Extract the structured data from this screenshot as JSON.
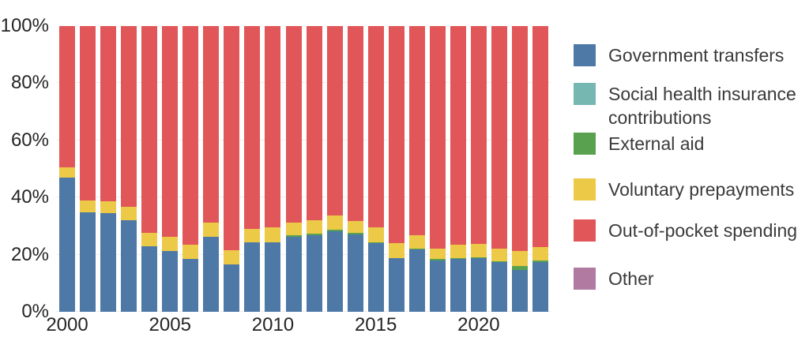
{
  "chart_data": {
    "type": "bar",
    "stacked": true,
    "normalized_percent": true,
    "title": "",
    "xlabel": "",
    "ylabel": "",
    "ylim": [
      0,
      100
    ],
    "grid": "faint dotted horizontal lines at 20% intervals",
    "legend_position": "right",
    "categories": [
      "2000",
      "2001",
      "2002",
      "2003",
      "2004",
      "2005",
      "2006",
      "2007",
      "2008",
      "2009",
      "2010",
      "2011",
      "2012",
      "2013",
      "2014",
      "2015",
      "2016",
      "2017",
      "2018",
      "2019",
      "2020",
      "2021",
      "2022",
      "2023"
    ],
    "series": [
      {
        "name": "Government transfers",
        "color": "#4e79a7",
        "values": [
          47.0,
          34.8,
          34.5,
          32.0,
          23.0,
          21.3,
          18.5,
          26.2,
          16.6,
          24.2,
          24.2,
          26.2,
          26.7,
          28.3,
          27.2,
          24.0,
          18.7,
          21.8,
          18.0,
          18.4,
          18.9,
          17.5,
          14.7,
          17.5
        ]
      },
      {
        "name": "Social health insurance contributions",
        "color": "#76b7b2",
        "values": [
          0,
          0,
          0,
          0,
          0,
          0,
          0,
          0,
          0,
          0,
          0,
          0,
          0,
          0,
          0,
          0,
          0,
          0,
          0,
          0,
          0,
          0,
          0,
          0
        ]
      },
      {
        "name": "External aid",
        "color": "#59a14f",
        "values": [
          0,
          0,
          0,
          0,
          0,
          0,
          0,
          0,
          0,
          0,
          0,
          0.7,
          0.6,
          0.5,
          0.3,
          0.4,
          0,
          0.4,
          0.5,
          0.3,
          0.3,
          0.3,
          1.2,
          0.4
        ]
      },
      {
        "name": "Voluntary prepayments",
        "color": "#edc948",
        "values": [
          3.5,
          4.1,
          4.1,
          4.7,
          4.6,
          5.0,
          5.0,
          5.1,
          5.0,
          4.8,
          5.3,
          4.4,
          4.7,
          4.8,
          4.3,
          5.1,
          5.3,
          4.5,
          3.6,
          4.8,
          4.5,
          4.3,
          5.3,
          4.7
        ]
      },
      {
        "name": "Out-of-pocket spending",
        "color": "#e15759",
        "values": [
          49.5,
          61.1,
          61.4,
          63.3,
          72.4,
          73.7,
          76.5,
          68.7,
          78.4,
          71.0,
          70.5,
          68.7,
          68.0,
          66.4,
          68.2,
          70.5,
          76.0,
          73.3,
          77.9,
          76.5,
          76.3,
          77.9,
          78.8,
          77.4
        ]
      },
      {
        "name": "Other",
        "color": "#b07aa1",
        "values": [
          0,
          0,
          0,
          0,
          0,
          0,
          0,
          0,
          0,
          0,
          0,
          0,
          0,
          0,
          0,
          0,
          0,
          0,
          0,
          0,
          0,
          0,
          0,
          0
        ]
      }
    ],
    "y_ticks": [
      "0%",
      "20%",
      "40%",
      "60%",
      "80%",
      "100%"
    ],
    "x_ticks": [
      {
        "label": "2000",
        "bar_index": 0
      },
      {
        "label": "2005",
        "bar_index": 5
      },
      {
        "label": "2010",
        "bar_index": 10
      },
      {
        "label": "2015",
        "bar_index": 15
      },
      {
        "label": "2020",
        "bar_index": 20
      }
    ]
  },
  "legend": {
    "items": [
      {
        "label": "Government transfers",
        "color": "#4e79a7"
      },
      {
        "label": "Social health insurance contributions",
        "color": "#76b7b2"
      },
      {
        "label": "External aid",
        "color": "#59a14f"
      },
      {
        "label": "Voluntary prepayments",
        "color": "#edc948"
      },
      {
        "label": "Out-of-pocket spending",
        "color": "#e15759"
      },
      {
        "label": "Other",
        "color": "#b07aa1"
      }
    ]
  },
  "colors": {
    "background": "#ffffff",
    "axis_text": "#252525",
    "legend_text": "#3a3a3a",
    "gridline": "#dcdcdc"
  }
}
